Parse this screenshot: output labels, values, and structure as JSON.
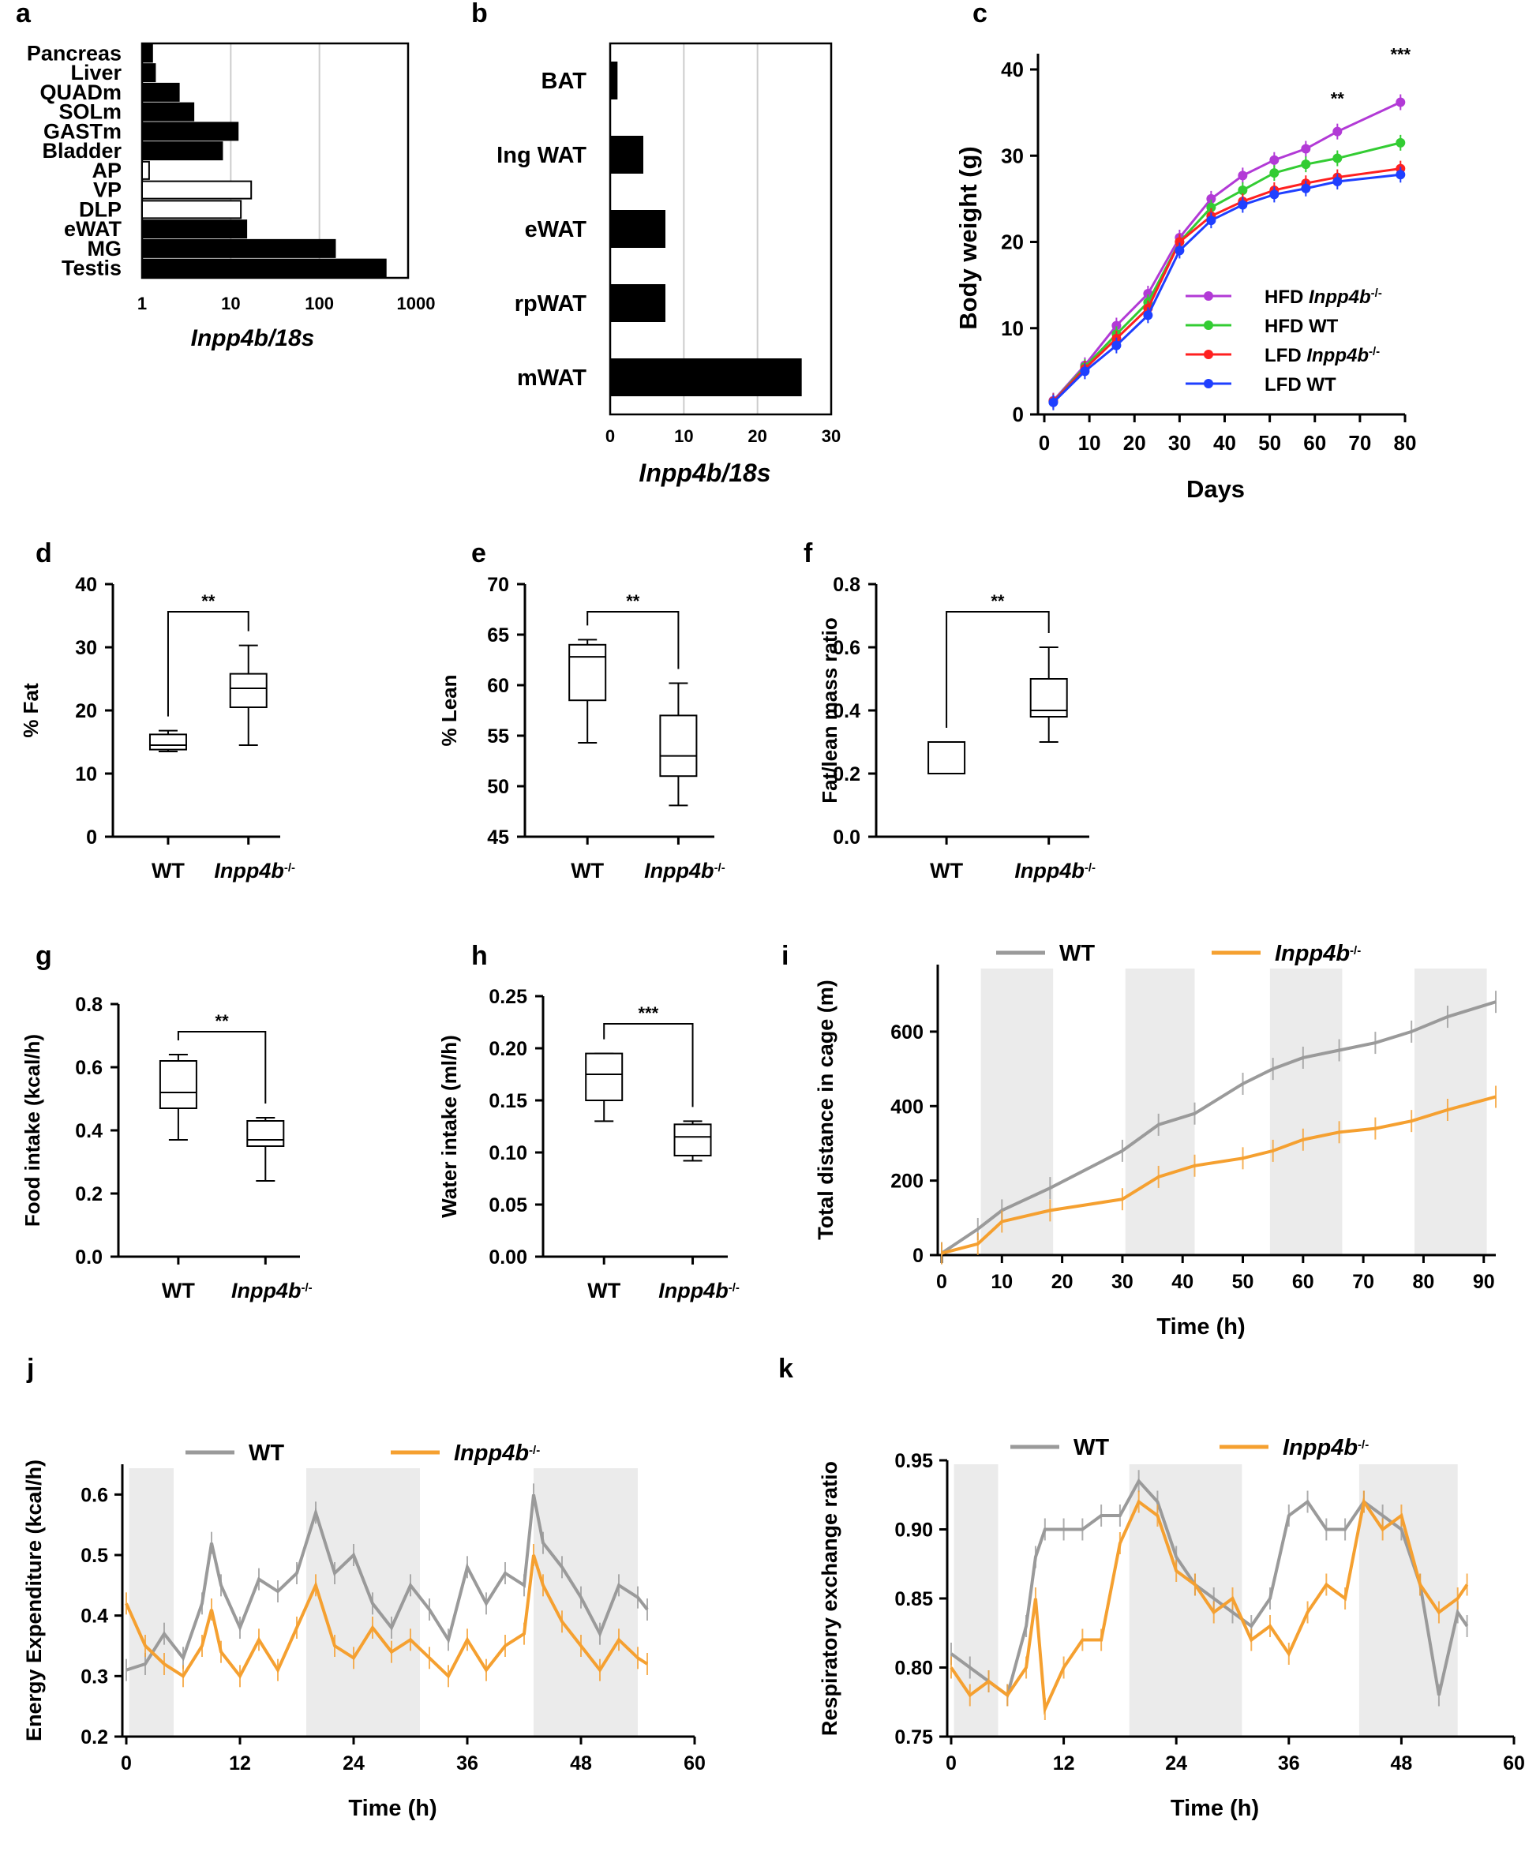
{
  "chart_data": [
    {
      "panel": "a",
      "type": "bar",
      "orientation": "horizontal",
      "xscale": "log",
      "xlabel": "Inpp4b/18s",
      "xlim": [
        1,
        1000
      ],
      "xticks": [
        "1",
        "10",
        "100",
        "1000"
      ],
      "categories": [
        "Pancreas",
        "Liver",
        "QUADm",
        "SOLm",
        "GASTm",
        "Bladder",
        "AP",
        "VP",
        "DLP",
        "eWAT",
        "MG",
        "Testis"
      ],
      "values": [
        1.3,
        1.4,
        2.6,
        3.8,
        12,
        8,
        1.2,
        17,
        13,
        15,
        150,
        560
      ],
      "fills": [
        "black",
        "black",
        "black",
        "black",
        "black",
        "black",
        "white",
        "white",
        "white",
        "black",
        "black",
        "black"
      ]
    },
    {
      "panel": "b",
      "type": "bar",
      "orientation": "horizontal",
      "xlabel": "Inpp4b/18s",
      "xlim": [
        0,
        30
      ],
      "xticks": [
        "0",
        "10",
        "20",
        "30"
      ],
      "categories": [
        "BAT",
        "Ing WAT",
        "eWAT",
        "rpWAT",
        "mWAT"
      ],
      "values": [
        1,
        4.5,
        7.5,
        7.5,
        26
      ]
    },
    {
      "panel": "c",
      "type": "line",
      "xlabel": "Days",
      "ylabel": "Body weight (g)",
      "xlim": [
        0,
        80
      ],
      "ylim": [
        0,
        40
      ],
      "xticks": [
        "0",
        "10",
        "20",
        "30",
        "40",
        "50",
        "60",
        "70",
        "80"
      ],
      "yticks": [
        "0",
        "10",
        "20",
        "30",
        "40"
      ],
      "x": [
        2,
        9,
        16,
        23,
        30,
        37,
        44,
        51,
        58,
        65,
        79
      ],
      "series": [
        {
          "name": "HFD",
          "name_italic": "Inpp4b",
          "name_sup": "-/-",
          "color": "#b23ad6",
          "values": [
            1.6,
            5.7,
            10.3,
            14,
            20.5,
            25,
            27.7,
            29.5,
            30.8,
            32.8,
            36.2
          ]
        },
        {
          "name": "HFD WT",
          "name_italic": "",
          "name_sup": "",
          "color": "#33cc33",
          "values": [
            1.5,
            5.5,
            9.3,
            13,
            20,
            24,
            26,
            28,
            29,
            29.7,
            31.5
          ]
        },
        {
          "name": "LFD",
          "name_italic": "Inpp4b",
          "name_sup": "-/-",
          "color": "#ff2020",
          "values": [
            1.5,
            5.3,
            8.8,
            12.3,
            20,
            23,
            24.7,
            26,
            26.8,
            27.5,
            28.5
          ]
        },
        {
          "name": "LFD WT",
          "name_italic": "",
          "name_sup": "",
          "color": "#1f3fff",
          "values": [
            1.4,
            5,
            8,
            11.5,
            19,
            22.5,
            24.3,
            25.5,
            26.2,
            27,
            27.8
          ]
        }
      ],
      "annotations": [
        {
          "x": 65,
          "text": "**"
        },
        {
          "x": 79,
          "text": "***"
        }
      ]
    },
    {
      "panel": "d",
      "type": "box",
      "ylabel": "% Fat",
      "ylim": [
        0,
        40
      ],
      "yticks": [
        "0",
        "10",
        "20",
        "30",
        "40"
      ],
      "categories": [
        "WT",
        "Inpp4b"
      ],
      "category_sup": [
        "",
        "-/-"
      ],
      "boxes": [
        {
          "min": 13.5,
          "q1": 13.8,
          "median": 14.5,
          "q3": 16.2,
          "max": 16.8
        },
        {
          "min": 14.5,
          "q1": 20.5,
          "median": 23.5,
          "q3": 25.8,
          "max": 30.3
        }
      ],
      "significance": "**"
    },
    {
      "panel": "e",
      "type": "box",
      "ylabel": "% Lean",
      "ylim": [
        45,
        70
      ],
      "yticks": [
        "45",
        "50",
        "55",
        "60",
        "65",
        "70"
      ],
      "categories": [
        "WT",
        "Inpp4b"
      ],
      "category_sup": [
        "",
        "-/-"
      ],
      "boxes": [
        {
          "min": 54.3,
          "q1": 58.5,
          "median": 62.8,
          "q3": 64.0,
          "max": 64.5
        },
        {
          "min": 48.1,
          "q1": 51.0,
          "median": 53.0,
          "q3": 57.0,
          "max": 60.2
        }
      ],
      "significance": "**"
    },
    {
      "panel": "f",
      "type": "box",
      "ylabel": "Fat/lean mass ratio",
      "ylim": [
        0,
        0.8
      ],
      "yticks": [
        "0.0",
        "0.2",
        "0.4",
        "0.6",
        "0.8"
      ],
      "categories": [
        "WT",
        "Inpp4b"
      ],
      "category_sup": [
        "",
        "-/-"
      ],
      "boxes": [
        {
          "min": 0.2,
          "q1": 0.2,
          "median": 0.2,
          "q3": 0.3,
          "max": 0.3
        },
        {
          "min": 0.3,
          "q1": 0.38,
          "median": 0.4,
          "q3": 0.5,
          "max": 0.6
        }
      ],
      "significance": "**"
    },
    {
      "panel": "g",
      "type": "box",
      "ylabel": "Food intake (kcal/h)",
      "ylim": [
        0,
        0.8
      ],
      "yticks": [
        "0.0",
        "0.2",
        "0.4",
        "0.6",
        "0.8"
      ],
      "categories": [
        "WT",
        "Inpp4b"
      ],
      "category_sup": [
        "",
        "-/-"
      ],
      "boxes": [
        {
          "min": 0.37,
          "q1": 0.47,
          "median": 0.52,
          "q3": 0.62,
          "max": 0.64
        },
        {
          "min": 0.24,
          "q1": 0.35,
          "median": 0.37,
          "q3": 0.43,
          "max": 0.44
        }
      ],
      "significance": "**"
    },
    {
      "panel": "h",
      "type": "box",
      "ylabel": "Water intake (ml/h)",
      "ylim": [
        0,
        0.25
      ],
      "yticks": [
        "0.00",
        "0.05",
        "0.10",
        "0.15",
        "0.20",
        "0.25"
      ],
      "categories": [
        "WT",
        "Inpp4b"
      ],
      "category_sup": [
        "",
        "-/-"
      ],
      "boxes": [
        {
          "min": 0.13,
          "q1": 0.15,
          "median": 0.175,
          "q3": 0.195,
          "max": 0.195
        },
        {
          "min": 0.092,
          "q1": 0.097,
          "median": 0.115,
          "q3": 0.127,
          "max": 0.13
        }
      ],
      "significance": "***"
    },
    {
      "panel": "i",
      "type": "line",
      "xlabel": "Time (h)",
      "ylabel": "Total distance in cage (m)",
      "xlim": [
        0,
        92
      ],
      "ylim": [
        0,
        780
      ],
      "xticks": [
        "0",
        "10",
        "20",
        "30",
        "40",
        "50",
        "60",
        "70",
        "80",
        "90"
      ],
      "yticks": [
        "0",
        "200",
        "400",
        "600"
      ],
      "dark_periods": [
        [
          6.5,
          18.5
        ],
        [
          30.5,
          42
        ],
        [
          54.5,
          66.5
        ],
        [
          78.5,
          90.5
        ]
      ],
      "x": [
        0,
        6,
        10,
        18,
        30,
        36,
        42,
        50,
        55,
        60,
        66,
        72,
        78,
        84,
        92
      ],
      "series": [
        {
          "name": "WT",
          "color": "#9a9a9a",
          "values": [
            5,
            70,
            120,
            180,
            280,
            350,
            380,
            460,
            500,
            530,
            550,
            570,
            600,
            640,
            680
          ]
        },
        {
          "name": "Inpp4b",
          "sup": "-/-",
          "color": "#f5a030",
          "values": [
            5,
            30,
            90,
            120,
            150,
            210,
            240,
            260,
            280,
            310,
            330,
            340,
            360,
            390,
            425
          ]
        }
      ]
    },
    {
      "panel": "j",
      "type": "line",
      "xlabel": "Time (h)",
      "ylabel": "Energy Expenditure (kcal/h)",
      "xlim": [
        0,
        60
      ],
      "ylim": [
        0.2,
        0.65
      ],
      "xticks": [
        "0",
        "12",
        "24",
        "36",
        "48",
        "60"
      ],
      "yticks": [
        "0.2",
        "0.3",
        "0.4",
        "0.5",
        "0.6"
      ],
      "dark_periods": [
        [
          0.3,
          5
        ],
        [
          19,
          31
        ],
        [
          43,
          54
        ]
      ],
      "x": [
        0,
        2,
        4,
        6,
        8,
        9,
        10,
        12,
        14,
        16,
        18,
        20,
        22,
        24,
        26,
        28,
        30,
        32,
        34,
        36,
        38,
        40,
        42,
        43,
        44,
        46,
        48,
        50,
        52,
        54,
        55
      ],
      "series": [
        {
          "name": "WT",
          "color": "#9a9a9a",
          "values": [
            0.31,
            0.32,
            0.37,
            0.33,
            0.42,
            0.52,
            0.45,
            0.38,
            0.46,
            0.44,
            0.47,
            0.57,
            0.47,
            0.5,
            0.42,
            0.38,
            0.45,
            0.41,
            0.36,
            0.48,
            0.42,
            0.47,
            0.45,
            0.6,
            0.52,
            0.48,
            0.43,
            0.37,
            0.45,
            0.43,
            0.41
          ]
        },
        {
          "name": "Inpp4b",
          "sup": "-/-",
          "color": "#f5a030",
          "values": [
            0.42,
            0.35,
            0.32,
            0.3,
            0.35,
            0.41,
            0.34,
            0.3,
            0.36,
            0.31,
            0.38,
            0.45,
            0.35,
            0.33,
            0.38,
            0.34,
            0.36,
            0.33,
            0.3,
            0.36,
            0.31,
            0.35,
            0.37,
            0.5,
            0.45,
            0.39,
            0.35,
            0.31,
            0.36,
            0.33,
            0.32
          ]
        }
      ]
    },
    {
      "panel": "k",
      "type": "line",
      "xlabel": "Time (h)",
      "ylabel": "Respiratory exchange ratio",
      "xlim": [
        0,
        60
      ],
      "ylim": [
        0.75,
        0.95
      ],
      "xticks": [
        "0",
        "12",
        "24",
        "36",
        "48",
        "60"
      ],
      "yticks": [
        "0.75",
        "0.80",
        "0.85",
        "0.90",
        "0.95"
      ],
      "dark_periods": [
        [
          0.3,
          5
        ],
        [
          19,
          31
        ],
        [
          43.5,
          54
        ]
      ],
      "x": [
        0,
        2,
        4,
        6,
        8,
        9,
        10,
        12,
        14,
        16,
        18,
        20,
        22,
        24,
        26,
        28,
        30,
        32,
        34,
        36,
        38,
        40,
        42,
        44,
        46,
        48,
        50,
        52,
        54,
        55
      ],
      "series": [
        {
          "name": "WT",
          "color": "#9a9a9a",
          "values": [
            0.81,
            0.8,
            0.79,
            0.78,
            0.83,
            0.88,
            0.9,
            0.9,
            0.9,
            0.91,
            0.91,
            0.935,
            0.92,
            0.88,
            0.86,
            0.85,
            0.84,
            0.83,
            0.85,
            0.91,
            0.92,
            0.9,
            0.9,
            0.92,
            0.91,
            0.9,
            0.86,
            0.78,
            0.84,
            0.83
          ]
        },
        {
          "name": "Inpp4b",
          "sup": "-/-",
          "color": "#f5a030",
          "values": [
            0.8,
            0.78,
            0.79,
            0.78,
            0.8,
            0.85,
            0.77,
            0.8,
            0.82,
            0.82,
            0.89,
            0.92,
            0.91,
            0.87,
            0.86,
            0.84,
            0.85,
            0.82,
            0.83,
            0.81,
            0.84,
            0.86,
            0.85,
            0.92,
            0.9,
            0.91,
            0.86,
            0.84,
            0.85,
            0.86
          ]
        }
      ]
    }
  ]
}
